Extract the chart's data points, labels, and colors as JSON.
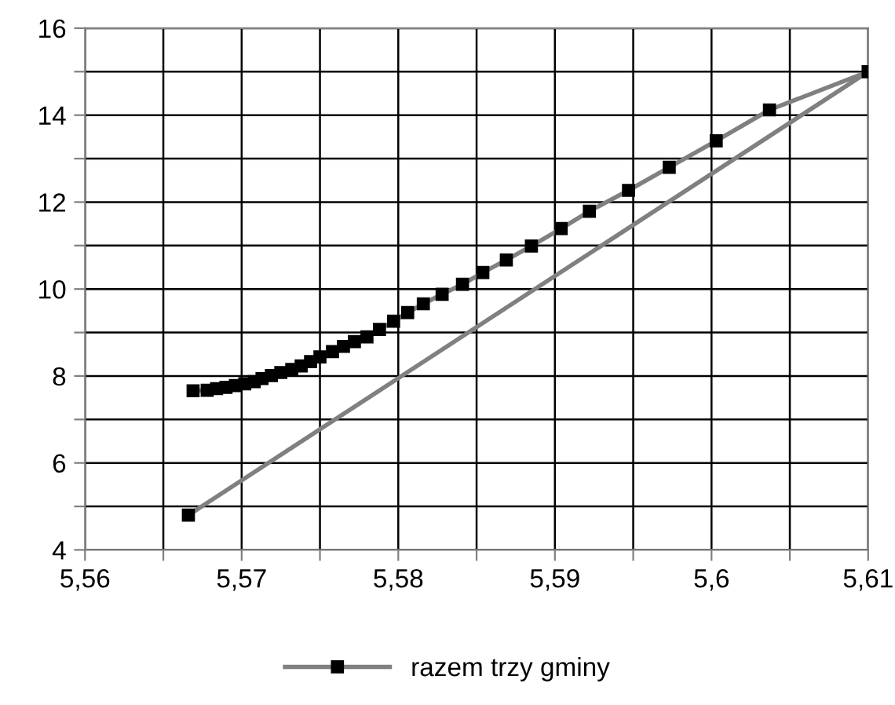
{
  "chart_data": {
    "type": "line",
    "series": [
      {
        "name": "razem trzy gminy",
        "color": "#808080",
        "x": [
          5.5666,
          5.61,
          5.6037,
          5.6003,
          5.5973,
          5.5947,
          5.5922,
          5.5904,
          5.5885,
          5.5869,
          5.5854,
          5.5841,
          5.5828,
          5.5816,
          5.5806,
          5.5797,
          5.5788,
          5.578,
          5.5772,
          5.5765,
          5.5758,
          5.575,
          5.5744,
          5.5738,
          5.5732,
          5.5725,
          5.5719,
          5.5713,
          5.5708,
          5.5702,
          5.5696,
          5.569,
          5.5684,
          5.5678,
          5.5669
        ],
        "values": [
          4.8,
          15,
          14.12,
          13.41,
          12.8,
          12.27,
          11.79,
          11.39,
          10.99,
          10.67,
          10.38,
          10.11,
          9.88,
          9.66,
          9.46,
          9.26,
          9.07,
          8.9,
          8.79,
          8.68,
          8.56,
          8.44,
          8.33,
          8.23,
          8.15,
          8.08,
          8.01,
          7.94,
          7.87,
          7.82,
          7.78,
          7.74,
          7.71,
          7.67,
          7.66
        ]
      }
    ],
    "xlim": [
      5.56,
      5.61
    ],
    "xticks": [
      {
        "value": 5.56,
        "label": "5,56"
      },
      {
        "value": 5.565,
        "label": null
      },
      {
        "value": 5.57,
        "label": "5,57"
      },
      {
        "value": 5.575,
        "label": null
      },
      {
        "value": 5.58,
        "label": "5,58"
      },
      {
        "value": 5.585,
        "label": null
      },
      {
        "value": 5.59,
        "label": "5,59"
      },
      {
        "value": 5.595,
        "label": null
      },
      {
        "value": 5.6,
        "label": "5,6"
      },
      {
        "value": 5.605,
        "label": null
      },
      {
        "value": 5.61,
        "label": "5,61"
      }
    ],
    "ylim": [
      4,
      16
    ],
    "yticks": [
      4,
      {
        "value": 5,
        "label": null
      },
      6,
      {
        "value": 7,
        "label": null
      },
      8,
      {
        "value": 9,
        "label": null
      },
      10,
      {
        "value": 11,
        "label": null
      },
      12,
      {
        "value": 13,
        "label": null
      },
      14,
      {
        "value": 15,
        "label": null
      },
      16
    ],
    "grid": true,
    "legend": "bottom",
    "marker": "square",
    "line_style": "solid"
  }
}
